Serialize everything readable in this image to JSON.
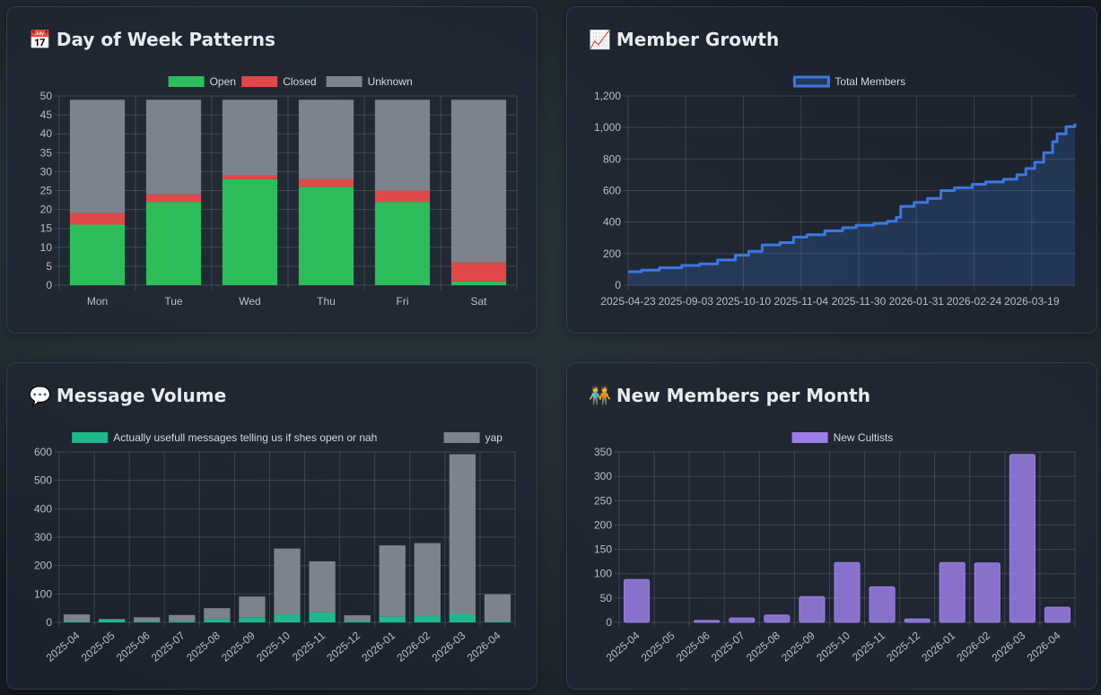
{
  "cards": {
    "dow": {
      "title": "Day of Week Patterns",
      "icon": "📅",
      "icon_name": "calendar-icon"
    },
    "growth": {
      "title": "Member Growth",
      "icon": "📈",
      "icon_name": "chart-increasing-icon"
    },
    "messages": {
      "title": "Message Volume",
      "icon": "💬",
      "icon_name": "speech-bubble-icon"
    },
    "newmembers": {
      "title": "New Members per Month",
      "icon": "🧑‍🤝‍🧑",
      "icon_name": "people-holding-hands-icon"
    }
  },
  "chart_data": [
    {
      "id": "dow",
      "type": "bar",
      "stacked": true,
      "title": "Day of Week Patterns",
      "categories": [
        "Mon",
        "Tue",
        "Wed",
        "Thu",
        "Fri",
        "Sat"
      ],
      "series": [
        {
          "name": "Open",
          "values": [
            16,
            22,
            28,
            26,
            22,
            1
          ],
          "color": "#2dbd5a"
        },
        {
          "name": "Closed",
          "values": [
            3,
            2,
            1,
            2,
            3,
            5
          ],
          "color": "#e04848"
        },
        {
          "name": "Unknown",
          "values": [
            30,
            25,
            20,
            21,
            24,
            43
          ],
          "color": "#7d838d"
        }
      ],
      "ylim": [
        0,
        50
      ],
      "yticks": [
        0,
        5,
        10,
        15,
        20,
        25,
        30,
        35,
        40,
        45,
        50
      ],
      "legend": "top-center",
      "grid": true
    },
    {
      "id": "growth",
      "type": "area",
      "title": "Member Growth",
      "series": [
        {
          "name": "Total Members",
          "color": "#3b78e0",
          "points": [
            [
              0,
              85
            ],
            [
              0.03,
              95
            ],
            [
              0.07,
              110
            ],
            [
              0.12,
              125
            ],
            [
              0.16,
              135
            ],
            [
              0.2,
              160
            ],
            [
              0.24,
              190
            ],
            [
              0.27,
              215
            ],
            [
              0.3,
              255
            ],
            [
              0.34,
              270
            ],
            [
              0.37,
              305
            ],
            [
              0.4,
              320
            ],
            [
              0.44,
              345
            ],
            [
              0.48,
              365
            ],
            [
              0.51,
              380
            ],
            [
              0.55,
              392
            ],
            [
              0.58,
              405
            ],
            [
              0.6,
              430
            ],
            [
              0.61,
              500
            ],
            [
              0.64,
              525
            ],
            [
              0.67,
              550
            ],
            [
              0.7,
              600
            ],
            [
              0.73,
              618
            ],
            [
              0.77,
              640
            ],
            [
              0.8,
              655
            ],
            [
              0.84,
              672
            ],
            [
              0.87,
              700
            ],
            [
              0.89,
              740
            ],
            [
              0.91,
              780
            ],
            [
              0.93,
              840
            ],
            [
              0.95,
              910
            ],
            [
              0.96,
              960
            ],
            [
              0.98,
              1005
            ],
            [
              1,
              1025
            ]
          ]
        }
      ],
      "xticks": [
        "2025-04-23",
        "2025-09-03",
        "2025-10-10",
        "2025-11-04",
        "2025-11-30",
        "2026-01-31",
        "2026-02-24",
        "2026-03-19"
      ],
      "ylim": [
        0,
        1200
      ],
      "yticks": [
        "0",
        "200",
        "400",
        "600",
        "800",
        "1,000",
        "1,200"
      ],
      "legend": "top-center",
      "grid": true
    },
    {
      "id": "messages",
      "type": "bar",
      "stacked": true,
      "title": "Message Volume",
      "categories": [
        "2025-04",
        "2025-05",
        "2025-06",
        "2025-07",
        "2025-08",
        "2025-09",
        "2025-10",
        "2025-11",
        "2025-12",
        "2026-01",
        "2026-02",
        "2026-03",
        "2026-04"
      ],
      "series": [
        {
          "name": "Actually usefull messages telling us if shes open or nah",
          "values": [
            3,
            10,
            3,
            4,
            12,
            18,
            27,
            35,
            5,
            20,
            22,
            30,
            3
          ],
          "color": "#1fb88a"
        },
        {
          "name": "yap",
          "values": [
            25,
            2,
            15,
            22,
            38,
            73,
            233,
            180,
            20,
            251,
            257,
            562,
            96
          ],
          "color": "#7d838d"
        }
      ],
      "ylim": [
        0,
        600
      ],
      "yticks": [
        0,
        100,
        200,
        300,
        400,
        500,
        600
      ],
      "legend": "top-center",
      "grid": true
    },
    {
      "id": "newmembers",
      "type": "bar",
      "title": "New Members per Month",
      "categories": [
        "2025-04",
        "2025-05",
        "2025-06",
        "2025-07",
        "2025-08",
        "2025-09",
        "2025-10",
        "2025-11",
        "2025-12",
        "2026-01",
        "2026-02",
        "2026-03",
        "2026-04"
      ],
      "series": [
        {
          "name": "New Cultists",
          "values": [
            88,
            0,
            4,
            9,
            15,
            53,
            123,
            73,
            7,
            123,
            122,
            345,
            31
          ],
          "color": "#9b7fe6"
        }
      ],
      "ylim": [
        0,
        350
      ],
      "yticks": [
        0,
        50,
        100,
        150,
        200,
        250,
        300,
        350
      ],
      "legend": "top-center",
      "grid": true
    }
  ]
}
